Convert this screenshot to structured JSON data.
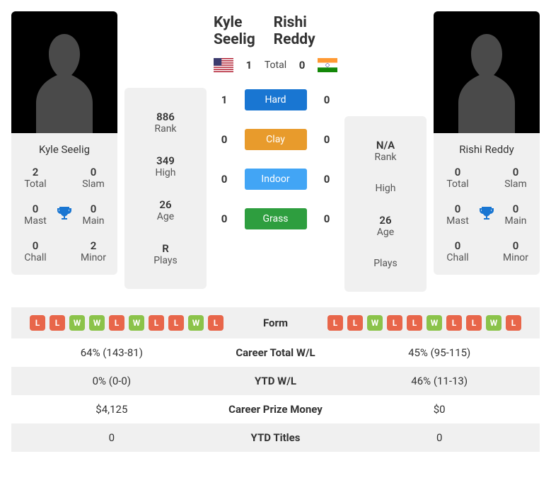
{
  "colors": {
    "win_badge": "#8bc34a",
    "loss_badge": "#e8664a",
    "hard": "#1976d2",
    "clay": "#e89b2c",
    "indoor": "#42a5f5",
    "grass": "#2e9e3f",
    "trophy": "#1976d2",
    "silhouette": "#4a4a4a"
  },
  "player1": {
    "name": "Kyle Seelig",
    "country": "US",
    "rank": "886",
    "high": "349",
    "age": "26",
    "plays": "R",
    "titles": {
      "total": "2",
      "slam": "0",
      "mast": "0",
      "main": "0",
      "chall": "0",
      "minor": "2"
    }
  },
  "player2": {
    "name": "Rishi Reddy",
    "country": "IN",
    "rank": "N/A",
    "high": "",
    "age": "26",
    "plays": "",
    "titles": {
      "total": "0",
      "slam": "0",
      "mast": "0",
      "main": "0",
      "chall": "0",
      "minor": "0"
    }
  },
  "labels": {
    "rank": "Rank",
    "high": "High",
    "age": "Age",
    "plays": "Plays",
    "total_t": "Total",
    "slam": "Slam",
    "mast": "Mast",
    "main": "Main",
    "chall": "Chall",
    "minor": "Minor",
    "total": "Total"
  },
  "h2h": {
    "p1_total": "1",
    "p2_total": "0",
    "surfaces": [
      {
        "name": "Hard",
        "color_key": "hard",
        "p1": "1",
        "p2": "0"
      },
      {
        "name": "Clay",
        "color_key": "clay",
        "p1": "0",
        "p2": "0"
      },
      {
        "name": "Indoor",
        "color_key": "indoor",
        "p1": "0",
        "p2": "0"
      },
      {
        "name": "Grass",
        "color_key": "grass",
        "p1": "0",
        "p2": "0"
      }
    ]
  },
  "form": {
    "label": "Form",
    "p1": [
      "L",
      "L",
      "W",
      "W",
      "L",
      "W",
      "L",
      "L",
      "W",
      "L"
    ],
    "p2": [
      "L",
      "L",
      "W",
      "L",
      "L",
      "W",
      "L",
      "L",
      "W",
      "L"
    ]
  },
  "stats_rows": [
    {
      "label": "Career Total W/L",
      "p1": "64% (143-81)",
      "p2": "45% (95-115)"
    },
    {
      "label": "YTD W/L",
      "p1": "0% (0-0)",
      "p2": "46% (11-13)"
    },
    {
      "label": "Career Prize Money",
      "p1": "$4,125",
      "p2": "$0"
    },
    {
      "label": "YTD Titles",
      "p1": "0",
      "p2": "0"
    }
  ]
}
